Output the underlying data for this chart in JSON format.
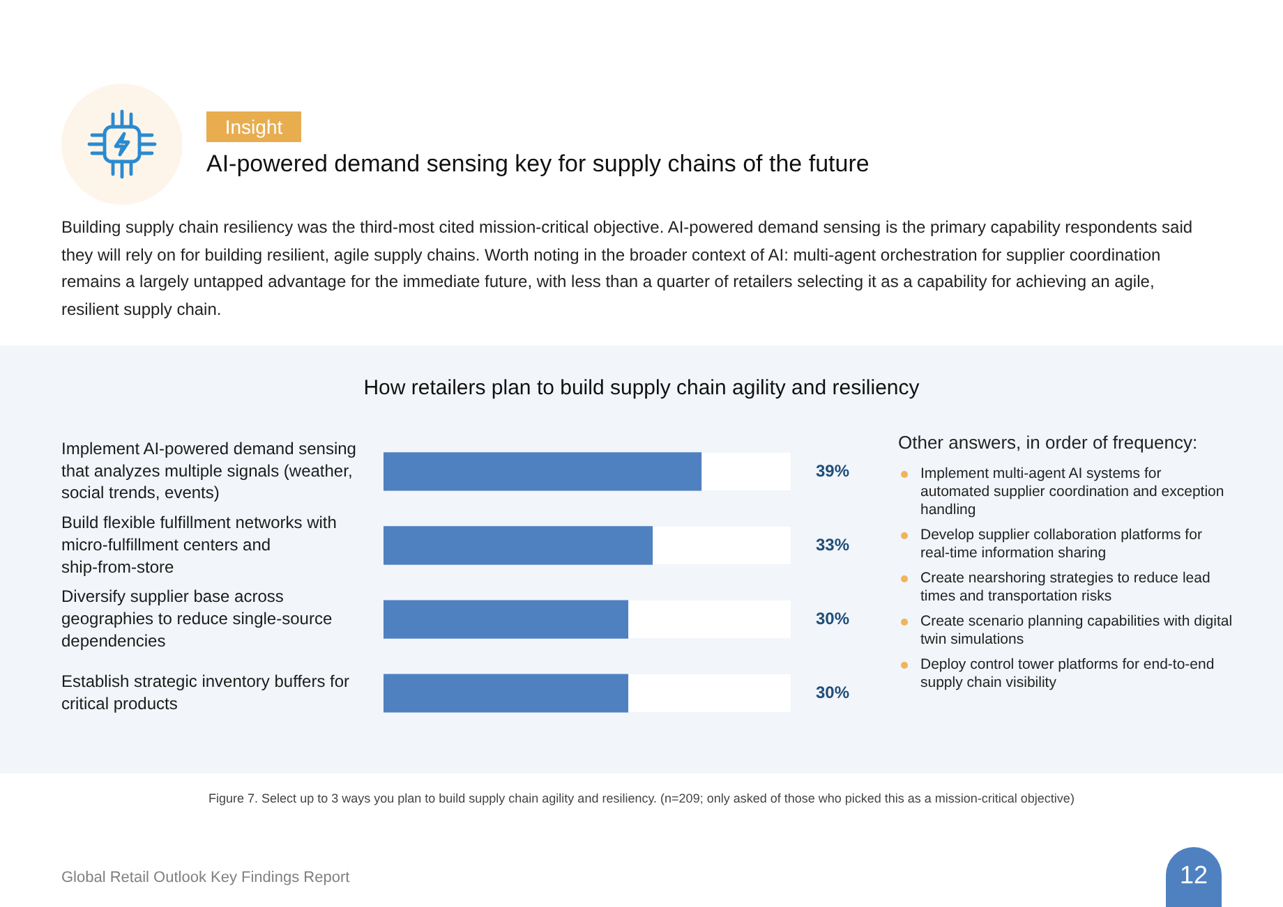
{
  "chart_data": {
    "type": "bar",
    "orientation": "horizontal",
    "title": "How retailers plan to build supply chain agility and resiliency",
    "categories": [
      "Implement AI-powered demand sensing that analyzes multiple signals (weather, social trends, events)",
      "Build flexible fulfillment networks with micro-fulfillment centers and ship-from-store",
      "Diversify supplier base across geographies to reduce single-source dependencies",
      "Establish strategic inventory buffers for critical products"
    ],
    "values": [
      39,
      33,
      30,
      30
    ],
    "color": "#4f81c1",
    "value_labels": [
      "39%",
      "33%",
      "30%",
      "30%"
    ],
    "xlim": [
      0,
      50
    ],
    "tick_labels": "y",
    "annotations": [
      "Insight",
      "AI-powered demand sensing key for supply chains of the future",
      "Building supply chain resiliency was the third-most cited mission-critical objective. AI-powered demand sensing is the primary capability respondents said they will rely on for building resilient, agile supply chains. Worth noting in the broader context of AI: multi-agent orchestration for supplier coordination remains a largely untapped advantage for the immediate future, with less than a quarter of retailers selecting it as a capability for achieving an agile, resilient supply chain.",
      "Other answers, in order of frequency:",
      "Implement multi-agent AI systems for automated supplier coordination and exception handling",
      "Develop supplier collaboration platforms for real-time information sharing",
      "Create nearshoring strategies to reduce lead times and transportation risks",
      "Create scenario planning capabilities with digital twin simulations",
      "Deploy control tower platforms for end-to-end supply chain visibility",
      "Figure 7. Select up to 3 ways you plan to build supply chain agility and resiliency. (n=209; only asked of those who picked this as a mission-critical objective)",
      "Global Retail Outlook Key Findings Report",
      "12"
    ]
  }
}
